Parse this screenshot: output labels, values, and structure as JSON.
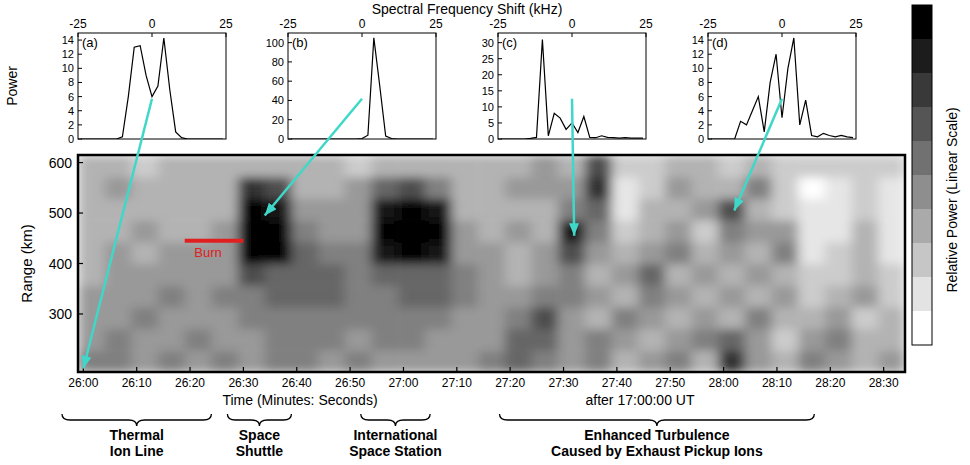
{
  "spectra_axes": {
    "x_label": "Spectral Frequency Shift (kHz)",
    "y_label": "Power"
  },
  "chart_data": [
    {
      "type": "line",
      "panel": "(a)",
      "color": "#000000",
      "x": [
        -24,
        -22,
        -20,
        -18,
        -16,
        -14,
        -12,
        -10,
        -8,
        -6,
        -4,
        -2,
        0,
        2,
        4,
        6,
        8,
        10,
        12,
        14,
        16,
        18,
        20,
        22,
        24
      ],
      "values": [
        0,
        0,
        0,
        0,
        0,
        0,
        0,
        0.3,
        6,
        13,
        13.2,
        9,
        6,
        7.5,
        14.3,
        7,
        1,
        0.2,
        0,
        0,
        0,
        0,
        0,
        0,
        0
      ],
      "xlim": [
        -25,
        25
      ],
      "xticks": [
        -25,
        0,
        25
      ],
      "ylim": [
        0,
        15
      ],
      "yticks": [
        0,
        2,
        4,
        6,
        8,
        10,
        12,
        14
      ],
      "sample_time": 1560,
      "sample_range": 192
    },
    {
      "type": "line",
      "panel": "(b)",
      "color": "#000000",
      "x": [
        -24,
        -22,
        -20,
        -18,
        -16,
        -14,
        -12,
        -10,
        -8,
        -6,
        -4,
        -2,
        0,
        2,
        4,
        6,
        8,
        10,
        12,
        14,
        16,
        18,
        20,
        22,
        24
      ],
      "values": [
        0,
        0,
        0,
        0,
        0,
        0,
        0,
        0,
        0,
        0,
        0,
        0,
        0.5,
        4,
        105,
        55,
        3,
        0.5,
        0,
        0,
        0,
        0,
        0,
        0,
        0
      ],
      "xlim": [
        -25,
        25
      ],
      "xticks": [
        -25,
        0,
        25
      ],
      "ylim": [
        0,
        110
      ],
      "yticks": [
        0,
        20,
        40,
        60,
        80,
        100
      ],
      "sample_time": 1594,
      "sample_range": 495
    },
    {
      "type": "line",
      "panel": "(c)",
      "color": "#000000",
      "x": [
        -24,
        -22,
        -20,
        -18,
        -16,
        -14,
        -12,
        -10,
        -8,
        -6,
        -4,
        -2,
        0,
        2,
        4,
        6,
        8,
        10,
        12,
        14,
        16,
        18,
        20,
        22,
        24
      ],
      "values": [
        0,
        0,
        0,
        0,
        0,
        0.2,
        0.5,
        31,
        1,
        8,
        6.5,
        3,
        5,
        2,
        7,
        0.5,
        0.4,
        1,
        0.5,
        0.4,
        0.3,
        0.4,
        0.3,
        0.3,
        0.3
      ],
      "xlim": [
        -25,
        25
      ],
      "xticks": [
        -25,
        0,
        25
      ],
      "ylim": [
        0,
        33
      ],
      "yticks": [
        0,
        5,
        10,
        15,
        20,
        25,
        30
      ],
      "sample_time": 1652,
      "sample_range": 455
    },
    {
      "type": "line",
      "panel": "(d)",
      "color": "#000000",
      "x": [
        -24,
        -22,
        -20,
        -18,
        -16,
        -14,
        -12,
        -10,
        -8,
        -6,
        -4,
        -2,
        0,
        2,
        4,
        6,
        8,
        10,
        12,
        14,
        16,
        18,
        20,
        22,
        24
      ],
      "values": [
        0,
        0,
        0,
        0,
        0,
        2.5,
        2,
        4,
        6,
        1,
        8,
        12,
        3,
        10,
        14.3,
        2,
        5.5,
        0.5,
        0.3,
        0.8,
        0.5,
        0.3,
        0.5,
        0.3,
        0.2
      ],
      "xlim": [
        -25,
        25
      ],
      "xticks": [
        -25,
        0,
        25
      ],
      "ylim": [
        0,
        15
      ],
      "yticks": [
        0,
        2,
        4,
        6,
        8,
        10,
        12,
        14
      ],
      "sample_time": 1682,
      "sample_range": 505
    },
    {
      "type": "heatmap",
      "x_label": "Time (Minutes: Seconds)",
      "x_note": "after 17:00:00 UT",
      "y_label": "Range (km)",
      "xlim": [
        1559,
        1714
      ],
      "xticks": [
        {
          "value": 1560,
          "label": "26:00"
        },
        {
          "value": 1570,
          "label": "26:10"
        },
        {
          "value": 1580,
          "label": "26:20"
        },
        {
          "value": 1590,
          "label": "26:30"
        },
        {
          "value": 1600,
          "label": "26:40"
        },
        {
          "value": 1610,
          "label": "26:50"
        },
        {
          "value": 1620,
          "label": "27:00"
        },
        {
          "value": 1630,
          "label": "27:10"
        },
        {
          "value": 1640,
          "label": "27:20"
        },
        {
          "value": 1650,
          "label": "27:30"
        },
        {
          "value": 1660,
          "label": "27:40"
        },
        {
          "value": 1670,
          "label": "27:50"
        },
        {
          "value": 1680,
          "label": "28:00"
        },
        {
          "value": 1690,
          "label": "28:10"
        },
        {
          "value": 1700,
          "label": "28:20"
        },
        {
          "value": 1710,
          "label": "28:30"
        }
      ],
      "ylim": [
        185,
        615
      ],
      "yticks": [
        300,
        400,
        500,
        600
      ],
      "x_edges": [
        1559,
        1564,
        1569,
        1574,
        1579,
        1584,
        1589,
        1594,
        1599,
        1604,
        1609,
        1614,
        1619,
        1624,
        1629,
        1634,
        1639,
        1644,
        1649,
        1654,
        1659,
        1664,
        1669,
        1674,
        1679,
        1684,
        1689,
        1694,
        1699,
        1704,
        1709,
        1714
      ],
      "y_edges": [
        185,
        228,
        271,
        314,
        357,
        400,
        443,
        486,
        529,
        572,
        615
      ],
      "cells": [
        [
          5,
          5,
          4,
          5,
          4,
          5,
          4,
          5,
          5,
          4,
          5,
          4,
          4,
          4,
          4,
          5,
          6,
          5,
          4,
          5,
          3,
          4,
          5,
          3,
          8,
          4,
          3,
          5,
          4,
          3,
          4
        ],
        [
          4,
          5,
          4,
          4,
          5,
          4,
          4,
          5,
          5,
          5,
          4,
          5,
          5,
          4,
          4,
          4,
          6,
          6,
          4,
          5,
          4,
          3,
          4,
          5,
          6,
          4,
          2,
          4,
          5,
          3,
          3
        ],
        [
          4,
          4,
          5,
          4,
          4,
          4,
          5,
          5,
          5,
          5,
          5,
          5,
          5,
          5,
          4,
          4,
          5,
          7,
          4,
          3,
          5,
          4,
          3,
          4,
          3,
          5,
          3,
          3,
          4,
          2,
          3
        ],
        [
          4,
          4,
          4,
          5,
          4,
          5,
          5,
          6,
          6,
          6,
          5,
          5,
          6,
          6,
          5,
          4,
          4,
          5,
          5,
          4,
          3,
          5,
          4,
          3,
          4,
          3,
          4,
          2,
          3,
          4,
          2
        ],
        [
          3,
          4,
          4,
          4,
          4,
          4,
          7,
          6,
          6,
          6,
          5,
          6,
          6,
          6,
          5,
          4,
          3,
          4,
          5,
          3,
          4,
          6,
          3,
          4,
          3,
          4,
          3,
          2,
          2,
          3,
          2
        ],
        [
          3,
          4,
          3,
          4,
          4,
          4,
          10,
          10,
          6,
          5,
          5,
          9,
          10,
          9,
          4,
          4,
          3,
          4,
          7,
          4,
          3,
          4,
          5,
          3,
          4,
          3,
          5,
          1,
          2,
          3,
          1
        ],
        [
          3,
          3,
          4,
          3,
          3,
          4,
          10,
          10,
          5,
          4,
          4,
          10,
          10,
          10,
          4,
          3,
          4,
          3,
          9,
          5,
          2,
          3,
          4,
          2,
          5,
          4,
          4,
          1,
          1,
          3,
          1
        ],
        [
          3,
          3,
          3,
          3,
          3,
          3,
          10,
          9,
          4,
          4,
          4,
          9,
          10,
          9,
          3,
          3,
          3,
          3,
          5,
          6,
          1,
          3,
          3,
          4,
          7,
          3,
          2,
          1,
          1,
          2,
          1
        ],
        [
          3,
          4,
          3,
          3,
          3,
          3,
          8,
          7,
          3,
          3,
          4,
          6,
          7,
          5,
          3,
          3,
          4,
          4,
          4,
          8,
          1,
          2,
          4,
          3,
          3,
          5,
          2,
          0,
          1,
          2,
          1
        ],
        [
          3,
          3,
          2,
          3,
          3,
          3,
          3,
          3,
          3,
          3,
          2,
          3,
          3,
          3,
          3,
          3,
          3,
          4,
          3,
          7,
          2,
          2,
          3,
          3,
          2,
          3,
          2,
          2,
          2,
          2,
          2
        ]
      ],
      "color_range": [
        0,
        10
      ],
      "color_label": "Relative Power (Linear Scale)",
      "burn": {
        "label": "Burn",
        "start": 1579,
        "end": 1590,
        "range": 445,
        "color": "#e02020"
      },
      "spans": [
        {
          "label_lines": [
            "Thermal",
            "Ion Line"
          ],
          "start": 1556,
          "end": 1584
        },
        {
          "label_lines": [
            "Space",
            "Shuttle"
          ],
          "start": 1587,
          "end": 1599
        },
        {
          "label_lines": [
            "International",
            "Space Station"
          ],
          "start": 1612,
          "end": 1625
        },
        {
          "label_lines": [
            "Enhanced Turbulence",
            "Caused by Exhaust Pickup Ions"
          ],
          "start": 1638,
          "end": 1697
        }
      ]
    }
  ]
}
